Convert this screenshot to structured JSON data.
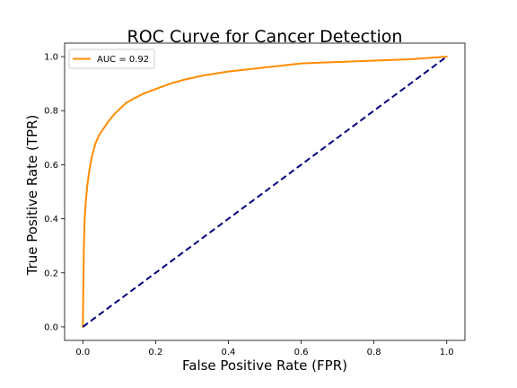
{
  "chart_data": {
    "type": "line",
    "title": "ROC Curve for Cancer Detection",
    "xlabel": "False Positive Rate (FPR)",
    "ylabel": "True Positive Rate (TPR)",
    "xlim": [
      -0.05,
      1.05
    ],
    "ylim": [
      -0.05,
      1.05
    ],
    "xticks": [
      0.0,
      0.2,
      0.4,
      0.6,
      0.8,
      1.0
    ],
    "yticks": [
      0.0,
      0.2,
      0.4,
      0.6,
      0.8,
      1.0
    ],
    "xtick_labels": [
      "0.0",
      "0.2",
      "0.4",
      "0.6",
      "0.8",
      "1.0"
    ],
    "ytick_labels": [
      "0.0",
      "0.2",
      "0.4",
      "0.6",
      "0.8",
      "1.0"
    ],
    "grid": false,
    "legend_position": "upper-left",
    "series": [
      {
        "name": "AUC = 0.92",
        "color": "#ff8c00",
        "style": "solid",
        "x": [
          0.0,
          0.001,
          0.002,
          0.003,
          0.005,
          0.008,
          0.012,
          0.018,
          0.025,
          0.035,
          0.045,
          0.055,
          0.07,
          0.085,
          0.1,
          0.12,
          0.14,
          0.17,
          0.2,
          0.24,
          0.28,
          0.33,
          0.4,
          0.5,
          0.6,
          0.7,
          0.8,
          0.9,
          0.95,
          1.0
        ],
        "y": [
          0.0,
          0.1,
          0.2,
          0.3,
          0.4,
          0.46,
          0.52,
          0.58,
          0.63,
          0.68,
          0.71,
          0.73,
          0.76,
          0.785,
          0.805,
          0.83,
          0.845,
          0.865,
          0.88,
          0.9,
          0.915,
          0.93,
          0.945,
          0.96,
          0.975,
          0.98,
          0.985,
          0.99,
          0.995,
          1.0
        ]
      },
      {
        "name": "",
        "color": "#000080",
        "style": "dashed",
        "x": [
          0.0,
          1.0
        ],
        "y": [
          0.0,
          1.0
        ]
      }
    ],
    "legend": [
      {
        "label": "AUC = 0.92",
        "color": "#ff8c00"
      }
    ]
  }
}
